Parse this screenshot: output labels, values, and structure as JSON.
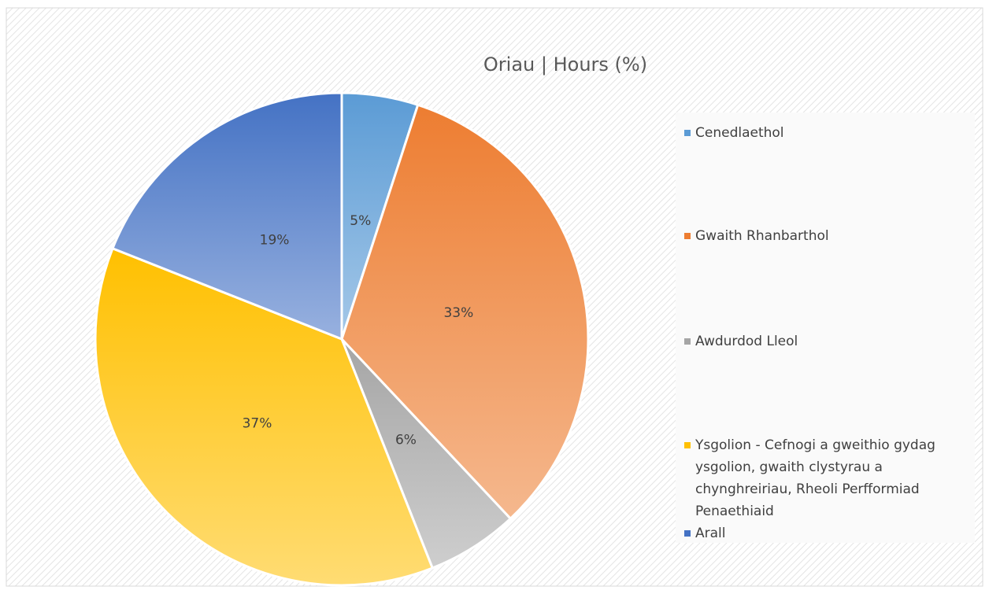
{
  "chart_data": {
    "type": "pie",
    "title": "Oriau | Hours (%)",
    "categories": [
      "Cenedlaethol",
      "Gwaith Rhanbarthol",
      "Awdurdod Lleol",
      "Ysgolion - Cefnogi a gweithio gydag ysgolion, gwaith clystyrau a chynghreiriau, Rheoli Perfformiad Penaethiaid",
      "Arall"
    ],
    "values": [
      5,
      33,
      6,
      37,
      19
    ],
    "value_labels": [
      "5%",
      "33%",
      "6%",
      "37%",
      "19%"
    ],
    "colors": [
      "#5b9bd5",
      "#ed7d31",
      "#a5a5a5",
      "#ffc000",
      "#4472c4"
    ],
    "legend": "right"
  }
}
